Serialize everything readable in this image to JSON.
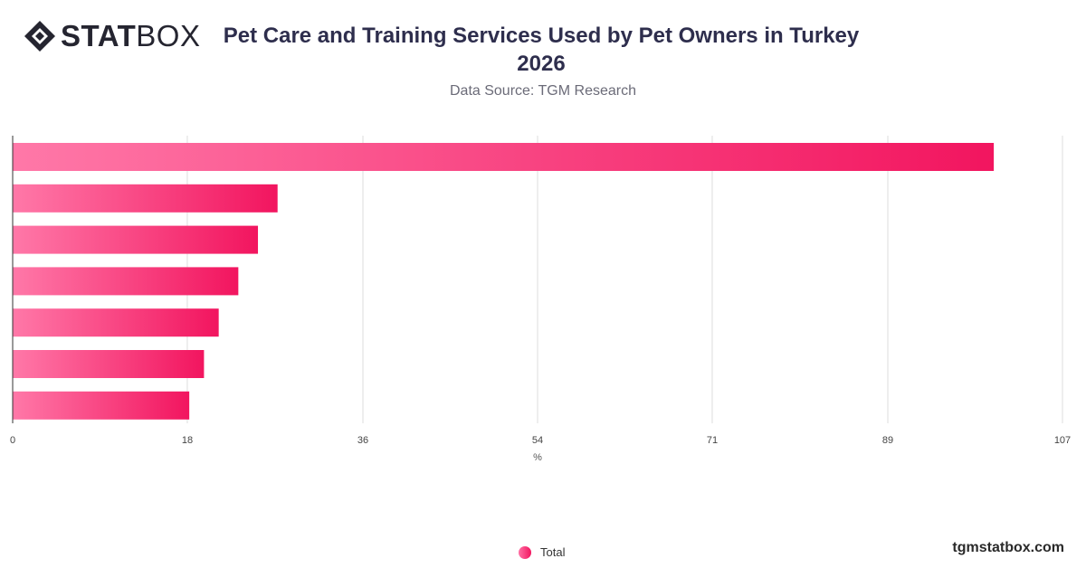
{
  "header": {
    "logo_bold": "STAT",
    "logo_light": "BOX",
    "title": "Pet Care and Training Services Used by Pet Owners in Turkey 2026",
    "subtitle": "Data Source: TGM Research"
  },
  "legend": {
    "label": "Total"
  },
  "footer": {
    "brand": "tgmstatbox.com"
  },
  "colors": {
    "bar_start": "#ff78a8",
    "bar_end": "#f2155f",
    "grid": "#dddddd",
    "axis": "#333333"
  },
  "chart_data": {
    "type": "bar",
    "orientation": "horizontal",
    "categories": [
      "",
      "",
      "",
      "",
      "",
      "",
      ""
    ],
    "series": [
      {
        "name": "Total",
        "values": [
          100,
          27,
          25,
          23,
          21,
          19.5,
          18
        ]
      }
    ],
    "x_ticks": [
      "0",
      "18",
      "36",
      "54",
      "71",
      "89",
      "107"
    ],
    "x_tick_values": [
      0,
      17.8,
      35.7,
      53.5,
      71.3,
      89.2,
      107
    ],
    "xlim": [
      0,
      107
    ],
    "xlabel": "%",
    "ylabel": "",
    "grid": true,
    "legend_position": "bottom-center"
  }
}
